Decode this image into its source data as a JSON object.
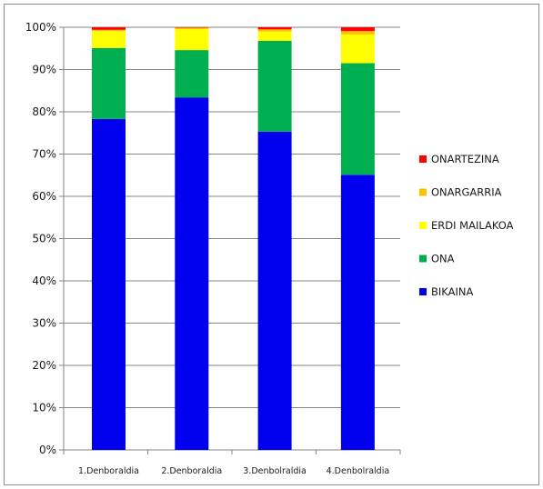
{
  "chart_data": {
    "type": "bar",
    "stacked": true,
    "categories": [
      "1.Denboraldia",
      "2.Denboraldia",
      "3.Denbolraldia",
      "4.Denbolraldia"
    ],
    "ylim": [
      0,
      100
    ],
    "yticks": [
      "0%",
      "10%",
      "20%",
      "30%",
      "40%",
      "50%",
      "60%",
      "70%",
      "80%",
      "90%",
      "100%"
    ],
    "grid": true,
    "legend_position": "right",
    "series": [
      {
        "name": "BIKAINA",
        "color": "#0000ee",
        "values": [
          78.3,
          83.4,
          75.3,
          65.1
        ]
      },
      {
        "name": "ONA",
        "color": "#00b050",
        "values": [
          16.8,
          11.2,
          21.5,
          26.4
        ]
      },
      {
        "name": "ERDI MAILAKOA",
        "color": "#ffff00",
        "values": [
          4.0,
          5.0,
          2.2,
          6.8
        ]
      },
      {
        "name": "ONARGARRIA",
        "color": "#ffc000",
        "values": [
          0.3,
          0.3,
          0.5,
          0.8
        ]
      },
      {
        "name": "ONARTEZINA",
        "color": "#ff0000",
        "values": [
          0.6,
          0.1,
          0.5,
          0.9
        ]
      }
    ]
  }
}
